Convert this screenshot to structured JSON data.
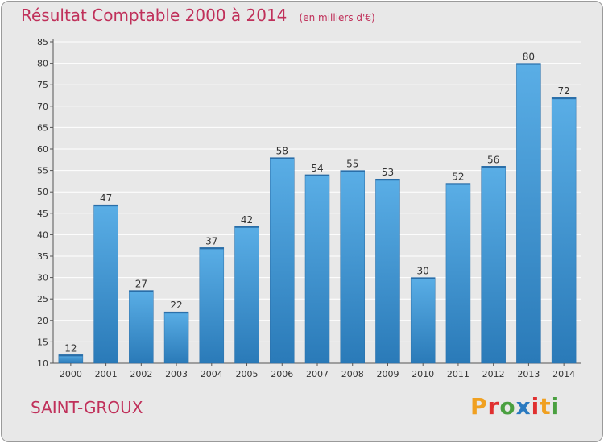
{
  "title": "Résultat Comptable 2000 à 2014",
  "subtitle": "(en milliers d'€)",
  "place": "SAINT-GROUX",
  "brand": "Proxiti",
  "colors": {
    "title": "#c0305a",
    "bar_light": "#5aaee6",
    "bar_dark": "#2a7ab8",
    "plot_bg": "#e8e8e8",
    "brand_letters": [
      "#f0a020",
      "#e03030",
      "#4aa040",
      "#2a7ac0",
      "#e03030",
      "#f0a020",
      "#4aa040"
    ]
  },
  "chart_data": {
    "type": "bar",
    "categories": [
      "2000",
      "2001",
      "2002",
      "2003",
      "2004",
      "2005",
      "2006",
      "2007",
      "2008",
      "2009",
      "2010",
      "2011",
      "2012",
      "2013",
      "2014"
    ],
    "values": [
      12,
      47,
      27,
      22,
      37,
      42,
      58,
      54,
      55,
      53,
      30,
      52,
      56,
      80,
      72
    ],
    "title": "Résultat Comptable 2000 à 2014",
    "xlabel": "",
    "ylabel": "",
    "ylim": [
      10,
      85
    ],
    "yticks": [
      10,
      15,
      20,
      25,
      30,
      35,
      40,
      45,
      50,
      55,
      60,
      65,
      70,
      75,
      80,
      85
    ],
    "grid": true,
    "data_labels": true
  }
}
